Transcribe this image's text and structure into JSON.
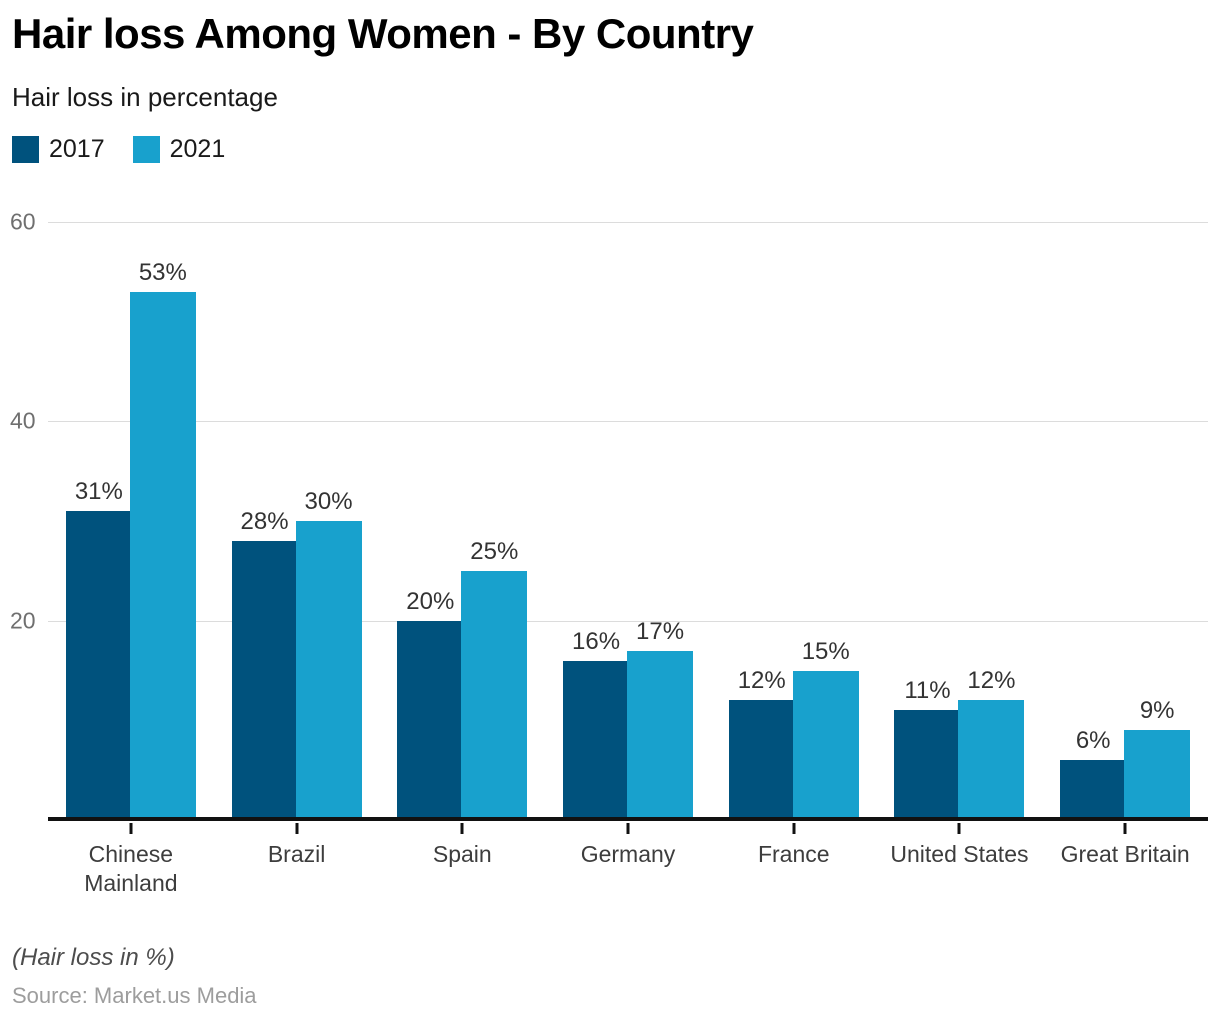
{
  "header": {
    "title": "Hair loss Among Women - By Country",
    "subtitle": "Hair loss in percentage"
  },
  "legend": {
    "position": "top-left",
    "items": [
      {
        "label": "2017",
        "color": "#00527d"
      },
      {
        "label": "2021",
        "color": "#18a1cd"
      }
    ]
  },
  "chart_data": {
    "type": "bar",
    "title": "Hair loss Among Women - By Country",
    "subtitle": "Hair loss in percentage",
    "categories": [
      "Chinese Mainland",
      "Brazil",
      "Spain",
      "Germany",
      "France",
      "United States",
      "Great Britain"
    ],
    "series": [
      {
        "name": "2017",
        "color": "#00527d",
        "values": [
          31,
          28,
          20,
          16,
          12,
          11,
          6
        ]
      },
      {
        "name": "2021",
        "color": "#18a1cd",
        "values": [
          53,
          30,
          25,
          17,
          15,
          12,
          9
        ]
      }
    ],
    "value_label_suffix": "%",
    "xlabel": "",
    "ylabel": "",
    "ylim": [
      0,
      60
    ],
    "yticks": [
      20,
      40,
      60
    ],
    "grid": "horizontal-only",
    "legend_position": "top-left"
  },
  "colors": {
    "series_2017": "#00527d",
    "series_2021": "#18a1cd",
    "gridline": "#dcdcdc",
    "axis": "#111111",
    "y_tick_text": "#6f6f6f",
    "value_label_text": "#333333",
    "x_label_text": "#3d3d3d",
    "title_text": "#000000",
    "source_text": "#9d9d9d"
  },
  "footer": {
    "note": "(Hair loss in %)",
    "source": "Source: Market.us Media"
  }
}
